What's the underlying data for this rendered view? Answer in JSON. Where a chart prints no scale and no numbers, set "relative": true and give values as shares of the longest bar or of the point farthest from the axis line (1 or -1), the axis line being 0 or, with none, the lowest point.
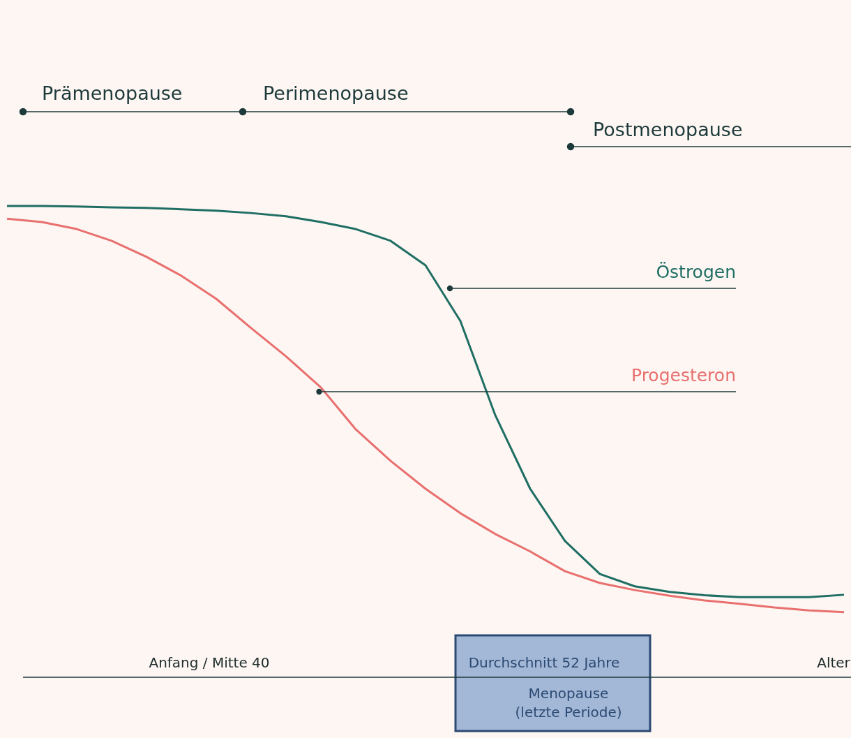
{
  "chart_data": {
    "type": "line",
    "relative": true,
    "categories": [
      null,
      null,
      null,
      null,
      null,
      null,
      null,
      null,
      null,
      null,
      null,
      null,
      null,
      null,
      null,
      null,
      null,
      null,
      null,
      null,
      null,
      null,
      null,
      null,
      null
    ],
    "series": [
      {
        "name": "Östrogen",
        "color": "#1f6e63",
        "values": [
          1.0,
          1.0,
          0.999,
          0.997,
          0.996,
          0.993,
          0.99,
          0.985,
          0.978,
          0.966,
          0.951,
          0.926,
          0.874,
          0.756,
          0.556,
          0.4,
          0.289,
          0.219,
          0.193,
          0.181,
          0.174,
          0.17,
          0.17,
          0.17,
          0.175
        ]
      },
      {
        "name": "Progesteron",
        "color": "#e8706e",
        "values": [
          0.973,
          0.966,
          0.951,
          0.926,
          0.892,
          0.852,
          0.803,
          0.741,
          0.681,
          0.615,
          0.526,
          0.459,
          0.4,
          0.348,
          0.304,
          0.267,
          0.225,
          0.2,
          0.185,
          0.173,
          0.163,
          0.156,
          0.148,
          0.142,
          0.138
        ]
      }
    ],
    "annotations": [
      "Prämenopause",
      "Perimenopause",
      "Postmenopause",
      "Anfang / Mitte 40",
      "Durchschnitt 52 Jahre",
      "Menopause",
      "(letzte Periode)",
      "Alter"
    ]
  }
}
